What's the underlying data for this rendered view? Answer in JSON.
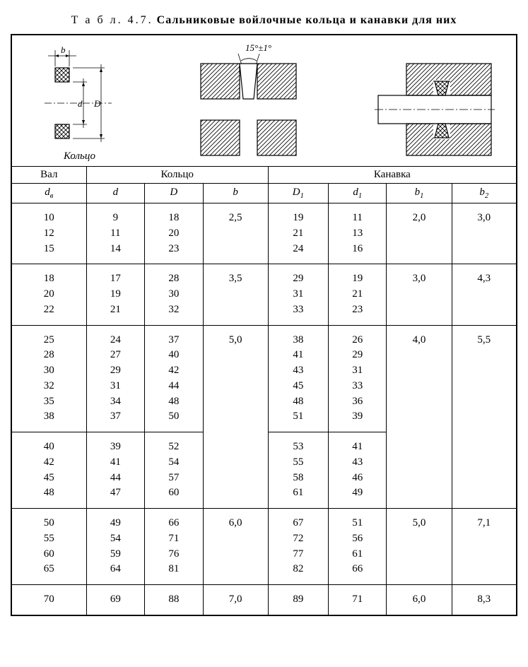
{
  "title_label": "Т а б л.  4.7.",
  "title_text": "Сальниковые войлочные кольца и канавки для них",
  "diagram_caption": "Кольцо",
  "angle_label": "15°±1°",
  "headers": {
    "group_shaft": "Вал",
    "group_ring": "Кольцо",
    "group_groove": "Канавка",
    "dv": "d",
    "dv_sub": "в",
    "d": "d",
    "D": "D",
    "b": "b",
    "D1": "D",
    "D1_sub": "1",
    "d1": "d",
    "d1_sub": "1",
    "b1": "b",
    "b1_sub": "1",
    "b2": "b",
    "b2_sub": "2"
  },
  "dim_labels": {
    "b": "b",
    "d": "d",
    "D": "D",
    "dv": "d",
    "dv_sub": "в",
    "d1": "d",
    "d1_sub": "1",
    "D1": "D",
    "D1_sub": "1",
    "b1": "b",
    "b1_sub": "1",
    "b2": "b",
    "b2_sub": "2"
  },
  "groups": [
    {
      "dv": [
        "10",
        "12",
        "15"
      ],
      "d": [
        "9",
        "11",
        "14"
      ],
      "D": [
        "18",
        "20",
        "23"
      ],
      "b": "2,5",
      "D1": [
        "19",
        "21",
        "24"
      ],
      "d1": [
        "11",
        "13",
        "16"
      ],
      "b1": "2,0",
      "b2": "3,0",
      "sep": "full"
    },
    {
      "dv": [
        "18",
        "20",
        "22"
      ],
      "d": [
        "17",
        "19",
        "21"
      ],
      "D": [
        "28",
        "30",
        "32"
      ],
      "b": "3,5",
      "D1": [
        "29",
        "31",
        "33"
      ],
      "d1": [
        "19",
        "21",
        "23"
      ],
      "b1": "3,0",
      "b2": "4,3",
      "sep": "full"
    },
    {
      "dv": [
        "25",
        "28",
        "30",
        "32",
        "35",
        "38"
      ],
      "d": [
        "24",
        "27",
        "29",
        "31",
        "34",
        "37"
      ],
      "D": [
        "37",
        "40",
        "42",
        "44",
        "48",
        "50"
      ],
      "b": "5,0",
      "D1": [
        "38",
        "41",
        "43",
        "45",
        "48",
        "51"
      ],
      "d1": [
        "26",
        "29",
        "31",
        "33",
        "36",
        "39"
      ],
      "b1": "4,0",
      "b2": "5,5",
      "sep": "partial"
    },
    {
      "dv": [
        "40",
        "42",
        "45",
        "48"
      ],
      "d": [
        "39",
        "41",
        "44",
        "47"
      ],
      "D": [
        "52",
        "54",
        "57",
        "60"
      ],
      "b": "",
      "D1": [
        "53",
        "55",
        "58",
        "61"
      ],
      "d1": [
        "41",
        "43",
        "46",
        "49"
      ],
      "b1": "",
      "b2": "",
      "sep": "full"
    },
    {
      "dv": [
        "50",
        "55",
        "60",
        "65"
      ],
      "d": [
        "49",
        "54",
        "59",
        "64"
      ],
      "D": [
        "66",
        "71",
        "76",
        "81"
      ],
      "b": "6,0",
      "D1": [
        "67",
        "72",
        "77",
        "82"
      ],
      "d1": [
        "51",
        "56",
        "61",
        "66"
      ],
      "b1": "5,0",
      "b2": "7,1",
      "sep": "full"
    },
    {
      "dv": [
        "70"
      ],
      "d": [
        "69"
      ],
      "D": [
        "88"
      ],
      "b": "7,0",
      "D1": [
        "89"
      ],
      "d1": [
        "71"
      ],
      "b1": "6,0",
      "b2": "8,3",
      "sep": "none"
    }
  ],
  "svg": {
    "hatch_stroke": "#000000",
    "fill_bg": "#ffffff",
    "stroke": "#000000"
  }
}
